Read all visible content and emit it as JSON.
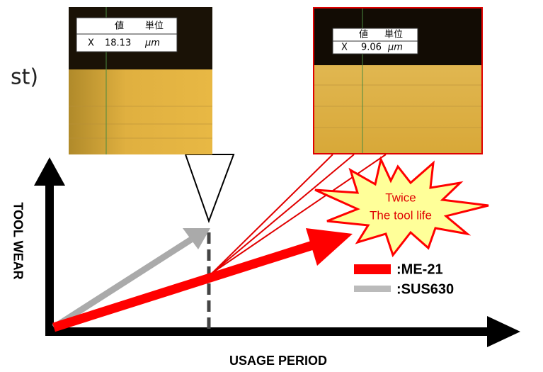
{
  "fragment": "st)",
  "photos": [
    {
      "header": [
        "値",
        "単位"
      ],
      "row": [
        "X",
        "18.13",
        "μm"
      ]
    },
    {
      "header": [
        "値",
        "単位"
      ],
      "row": [
        "X",
        "9.06",
        "μm"
      ]
    }
  ],
  "burst": [
    "Twice",
    "The tool life"
  ],
  "legend": [
    ":ME-21",
    ":SUS630"
  ],
  "axes": {
    "y_label": "TOOL WEAR",
    "x_label": "USAGE PERIOD"
  }
}
